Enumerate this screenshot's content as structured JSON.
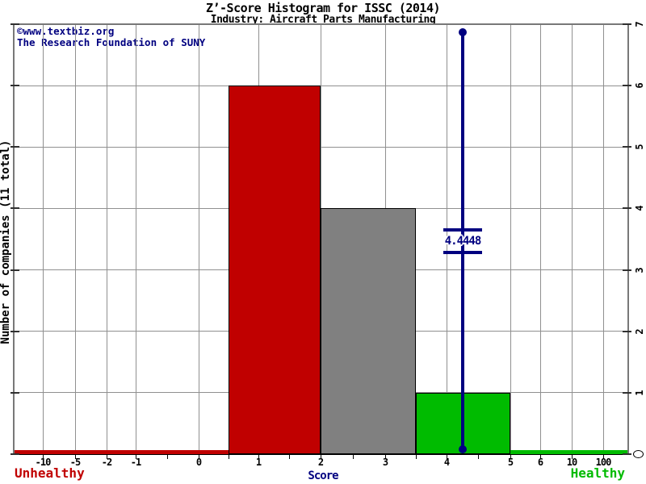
{
  "header": {
    "title": "Z’-Score Histogram for ISSC (2014)",
    "subtitle": "Industry: Aircraft Parts Manufacturing"
  },
  "watermark": {
    "line1": "©www.textbiz.org",
    "line2": "The Research Foundation of SUNY"
  },
  "labels": {
    "unhealthy": "Unhealthy",
    "healthy": "Healthy"
  },
  "chart_data": {
    "type": "bar",
    "title": "Z’-Score Histogram for ISSC (2014)",
    "subtitle": "Industry: Aircraft Parts Manufacturing",
    "xlabel": "Score",
    "ylabel": "Number of companies (11 total)",
    "total_companies": 11,
    "ylim": [
      0,
      7
    ],
    "grid": true,
    "x_ticks": [
      -10,
      -5,
      -2,
      -1,
      0,
      1,
      2,
      3,
      4,
      5,
      6,
      10,
      100
    ],
    "x_tick_labels": [
      "-10",
      "-5",
      "-2",
      "-1",
      "0",
      "1",
      "2",
      "3",
      "4",
      "5",
      "6",
      "10",
      "100"
    ],
    "y_ticks": [
      0,
      1,
      2,
      3,
      4,
      5,
      6,
      7
    ],
    "y_tick_labels": [
      "0",
      "1",
      "2",
      "3",
      "4",
      "5",
      "6",
      "7"
    ],
    "bins": [
      {
        "from": 0.5,
        "to": 2,
        "count": 6,
        "color": "#c00000",
        "label": "0.5 to 2"
      },
      {
        "from": 2,
        "to": 3.5,
        "count": 4,
        "color": "#808080",
        "label": "2 to 3.5"
      },
      {
        "from": 3.5,
        "to": 5,
        "count": 1,
        "color": "#00bb00",
        "label": "3.5 to 5"
      }
    ],
    "zero_ranges": [
      {
        "side": "left",
        "to": 0.5,
        "count": 0,
        "color": "#c00000"
      },
      {
        "side": "right",
        "from": 5,
        "count": 0,
        "color": "#00bb00"
      }
    ],
    "marker": {
      "label": "4.4448",
      "value": 4.4448,
      "color": "#000080"
    },
    "colors": {
      "unhealthy": "#c00000",
      "neutral": "#808080",
      "healthy": "#00bb00",
      "marker": "#000080",
      "grid": "#909090"
    },
    "legend_position": "none"
  }
}
